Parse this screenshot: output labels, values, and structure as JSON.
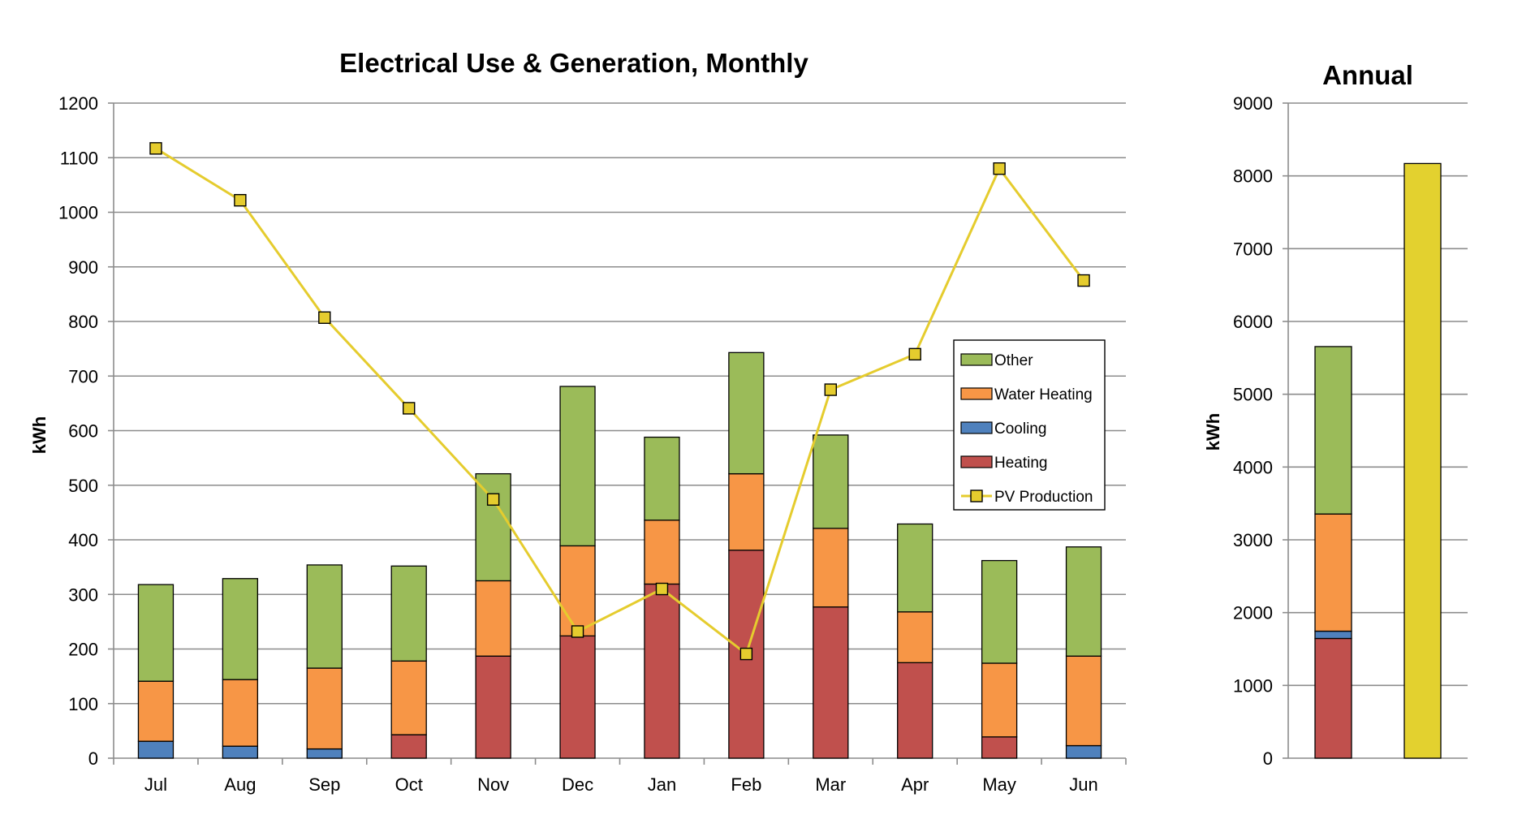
{
  "chart_data": [
    {
      "type": "bar",
      "stacked": true,
      "title": "Electrical Use & Generation, Monthly",
      "xlabel": "",
      "ylabel": "kWh",
      "ylim": [
        0,
        1200
      ],
      "yticks": [
        0,
        100,
        200,
        300,
        400,
        500,
        600,
        700,
        800,
        900,
        1000,
        1100,
        1200
      ],
      "grid": true,
      "categories": [
        "Jul",
        "Aug",
        "Sep",
        "Oct",
        "Nov",
        "Dec",
        "Jan",
        "Feb",
        "Mar",
        "Apr",
        "May",
        "Jun"
      ],
      "series": [
        {
          "name": "Heating",
          "color": "#C0504D",
          "values": [
            0,
            0,
            0,
            43,
            187,
            224,
            319,
            381,
            277,
            175,
            39,
            0
          ]
        },
        {
          "name": "Cooling",
          "color": "#4F81BD",
          "values": [
            31,
            22,
            17,
            0,
            0,
            0,
            0,
            0,
            0,
            0,
            0,
            23
          ]
        },
        {
          "name": "Water Heating",
          "color": "#F79646",
          "values": [
            110,
            122,
            148,
            135,
            138,
            165,
            117,
            140,
            144,
            93,
            135,
            164
          ]
        },
        {
          "name": "Other",
          "color": "#9BBB59",
          "values": [
            177,
            185,
            189,
            174,
            196,
            292,
            152,
            222,
            171,
            161,
            188,
            200
          ]
        }
      ],
      "line_series": {
        "name": "PV Production",
        "color": "#E5CC2E",
        "marker": "square",
        "values": [
          1117,
          1022,
          807,
          641,
          474,
          232,
          310,
          191,
          675,
          740,
          1080,
          875
        ]
      },
      "legend": {
        "position": "right",
        "entries": [
          "Other",
          "Water Heating",
          "Cooling",
          "Heating",
          "PV Production"
        ]
      }
    },
    {
      "type": "bar",
      "stacked": true,
      "title": "Annual",
      "xlabel": "",
      "ylabel": "kWh",
      "ylim": [
        0,
        9000
      ],
      "yticks": [
        0,
        1000,
        2000,
        3000,
        4000,
        5000,
        6000,
        7000,
        8000,
        9000
      ],
      "grid": true,
      "usage_stack": [
        {
          "name": "Heating",
          "color": "#C0504D",
          "value": 1645
        },
        {
          "name": "Cooling",
          "color": "#4F81BD",
          "value": 100
        },
        {
          "name": "Water Heating",
          "color": "#F79646",
          "value": 1610
        },
        {
          "name": "Other",
          "color": "#9BBB59",
          "value": 2300
        }
      ],
      "production": {
        "name": "PV Production",
        "color": "#E3D12F",
        "value": 8170
      }
    }
  ]
}
